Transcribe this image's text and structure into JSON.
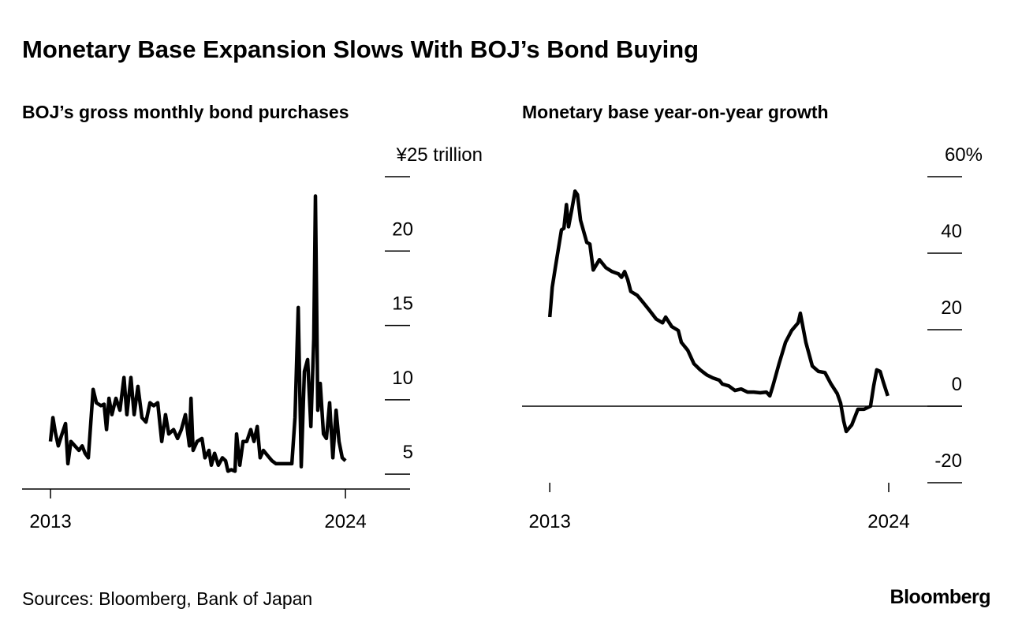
{
  "title": "Monetary Base Expansion Slows With BOJ’s Bond Buying",
  "source": "Sources: Bloomberg, Bank of Japan",
  "logo": "Bloomberg",
  "chart_data": [
    {
      "type": "line",
      "title": "BOJ’s gross monthly bond purchases",
      "x": [
        2013.0,
        2013.09,
        2013.18,
        2013.29,
        2013.41,
        2013.56,
        2013.65,
        2013.76,
        2013.91,
        2014.06,
        2014.18,
        2014.29,
        2014.41,
        2014.59,
        2014.71,
        2014.88,
        2015.0,
        2015.09,
        2015.18,
        2015.29,
        2015.44,
        2015.59,
        2015.74,
        2015.85,
        2016.0,
        2016.12,
        2016.26,
        2016.41,
        2016.56,
        2016.71,
        2016.85,
        2017.0,
        2017.15,
        2017.29,
        2017.41,
        2017.59,
        2017.74,
        2017.88,
        2018.03,
        2018.18,
        2018.24,
        2018.32,
        2018.47,
        2018.65,
        2018.76,
        2018.91,
        2019.0,
        2019.12,
        2019.26,
        2019.41,
        2019.53,
        2019.62,
        2019.74,
        2019.88,
        2019.94,
        2020.06,
        2020.18,
        2020.32,
        2020.47,
        2020.59,
        2020.71,
        2020.82,
        2020.94,
        2021.12,
        2021.26,
        2021.41,
        2021.71,
        2022.0,
        2022.12,
        2022.24,
        2022.35,
        2022.47,
        2022.59,
        2022.71,
        2022.82,
        2022.88,
        2022.97,
        2023.06,
        2023.18,
        2023.29,
        2023.41,
        2023.53,
        2023.65,
        2023.76,
        2023.88,
        2024.0
      ],
      "series": [
        {
          "name": "Bond purchases",
          "color": "#000000",
          "values": [
            7.2,
            8.8,
            7.8,
            6.9,
            7.6,
            8.4,
            5.7,
            7.2,
            6.9,
            6.6,
            6.9,
            6.4,
            6.1,
            10.7,
            9.8,
            9.6,
            9.7,
            8.0,
            10.1,
            9.0,
            10.1,
            9.3,
            11.5,
            9.0,
            11.5,
            9.0,
            10.9,
            8.8,
            8.5,
            9.8,
            9.6,
            9.8,
            7.2,
            9.0,
            7.7,
            8.0,
            7.4,
            8.0,
            9.0,
            6.9,
            10.1,
            6.6,
            7.2,
            7.4,
            6.1,
            6.6,
            5.6,
            6.4,
            5.6,
            6.1,
            5.9,
            5.2,
            5.3,
            5.2,
            7.7,
            5.6,
            7.2,
            7.2,
            8.0,
            7.2,
            8.2,
            6.1,
            6.6,
            6.2,
            5.9,
            5.7,
            5.7,
            5.7,
            8.8,
            16.2,
            5.5,
            11.9,
            12.7,
            8.2,
            14.1,
            23.7,
            9.3,
            11.1,
            7.7,
            7.4,
            9.8,
            6.1,
            9.3,
            7.2,
            6.1,
            5.9
          ]
        }
      ],
      "xlim": [
        2011.94,
        2026.41
      ],
      "xticks": [
        2013,
        2024
      ],
      "ylim": [
        4,
        25
      ],
      "yticks": [
        5,
        10,
        15,
        20,
        {
          "value": 25,
          "label": "¥25 trillion"
        }
      ]
    },
    {
      "type": "line",
      "title": "Monetary base year-on-year growth",
      "x": [
        2013.0,
        2013.08,
        2013.18,
        2013.38,
        2013.46,
        2013.54,
        2013.61,
        2013.72,
        2013.82,
        2013.9,
        2014.0,
        2014.2,
        2014.3,
        2014.41,
        2014.61,
        2014.82,
        2015.02,
        2015.23,
        2015.33,
        2015.43,
        2015.53,
        2015.63,
        2015.84,
        2016.04,
        2016.25,
        2016.45,
        2016.66,
        2016.76,
        2016.96,
        2017.17,
        2017.27,
        2017.48,
        2017.68,
        2017.88,
        2018.09,
        2018.29,
        2018.5,
        2018.6,
        2018.81,
        2019.01,
        2019.21,
        2019.42,
        2019.62,
        2019.83,
        2020.03,
        2020.14,
        2020.24,
        2020.44,
        2020.65,
        2020.85,
        2021.06,
        2021.13,
        2021.31,
        2021.52,
        2021.72,
        2021.93,
        2022.13,
        2022.33,
        2022.44,
        2022.54,
        2022.62,
        2022.8,
        2023.0,
        2023.2,
        2023.41,
        2023.51,
        2023.61,
        2023.72,
        2023.82,
        2023.97
      ],
      "series": [
        {
          "name": "Monetary base growth",
          "color": "#000000",
          "values": [
            23.3,
            31.1,
            36.2,
            46.1,
            46.5,
            52.7,
            46.9,
            51.6,
            56.2,
            55.3,
            48.6,
            42.8,
            42.4,
            35.6,
            38.3,
            36.2,
            35.2,
            34.6,
            33.7,
            35.2,
            33.1,
            30.0,
            29.0,
            27.0,
            24.9,
            22.8,
            21.8,
            23.3,
            20.8,
            19.8,
            16.7,
            14.6,
            11.1,
            9.5,
            8.2,
            7.4,
            6.8,
            5.8,
            5.3,
            4.1,
            4.5,
            3.7,
            3.7,
            3.5,
            3.7,
            2.7,
            5.3,
            11.1,
            16.7,
            19.8,
            21.8,
            24.3,
            16.7,
            10.5,
            9.1,
            8.8,
            5.8,
            3.3,
            0.8,
            -3.9,
            -6.6,
            -4.9,
            -0.8,
            -0.8,
            0.0,
            5.3,
            9.5,
            9.1,
            6.4,
            2.7
          ]
        }
      ],
      "xlim": [
        2012.1,
        2026.38
      ],
      "xticks": [
        2013,
        2024
      ],
      "ylim": [
        -20,
        60
      ],
      "yticks": [
        {
          "value": -20,
          "label": "-20"
        },
        0,
        20,
        40,
        {
          "value": 60,
          "label": "60%"
        }
      ],
      "zero_line": true
    }
  ]
}
